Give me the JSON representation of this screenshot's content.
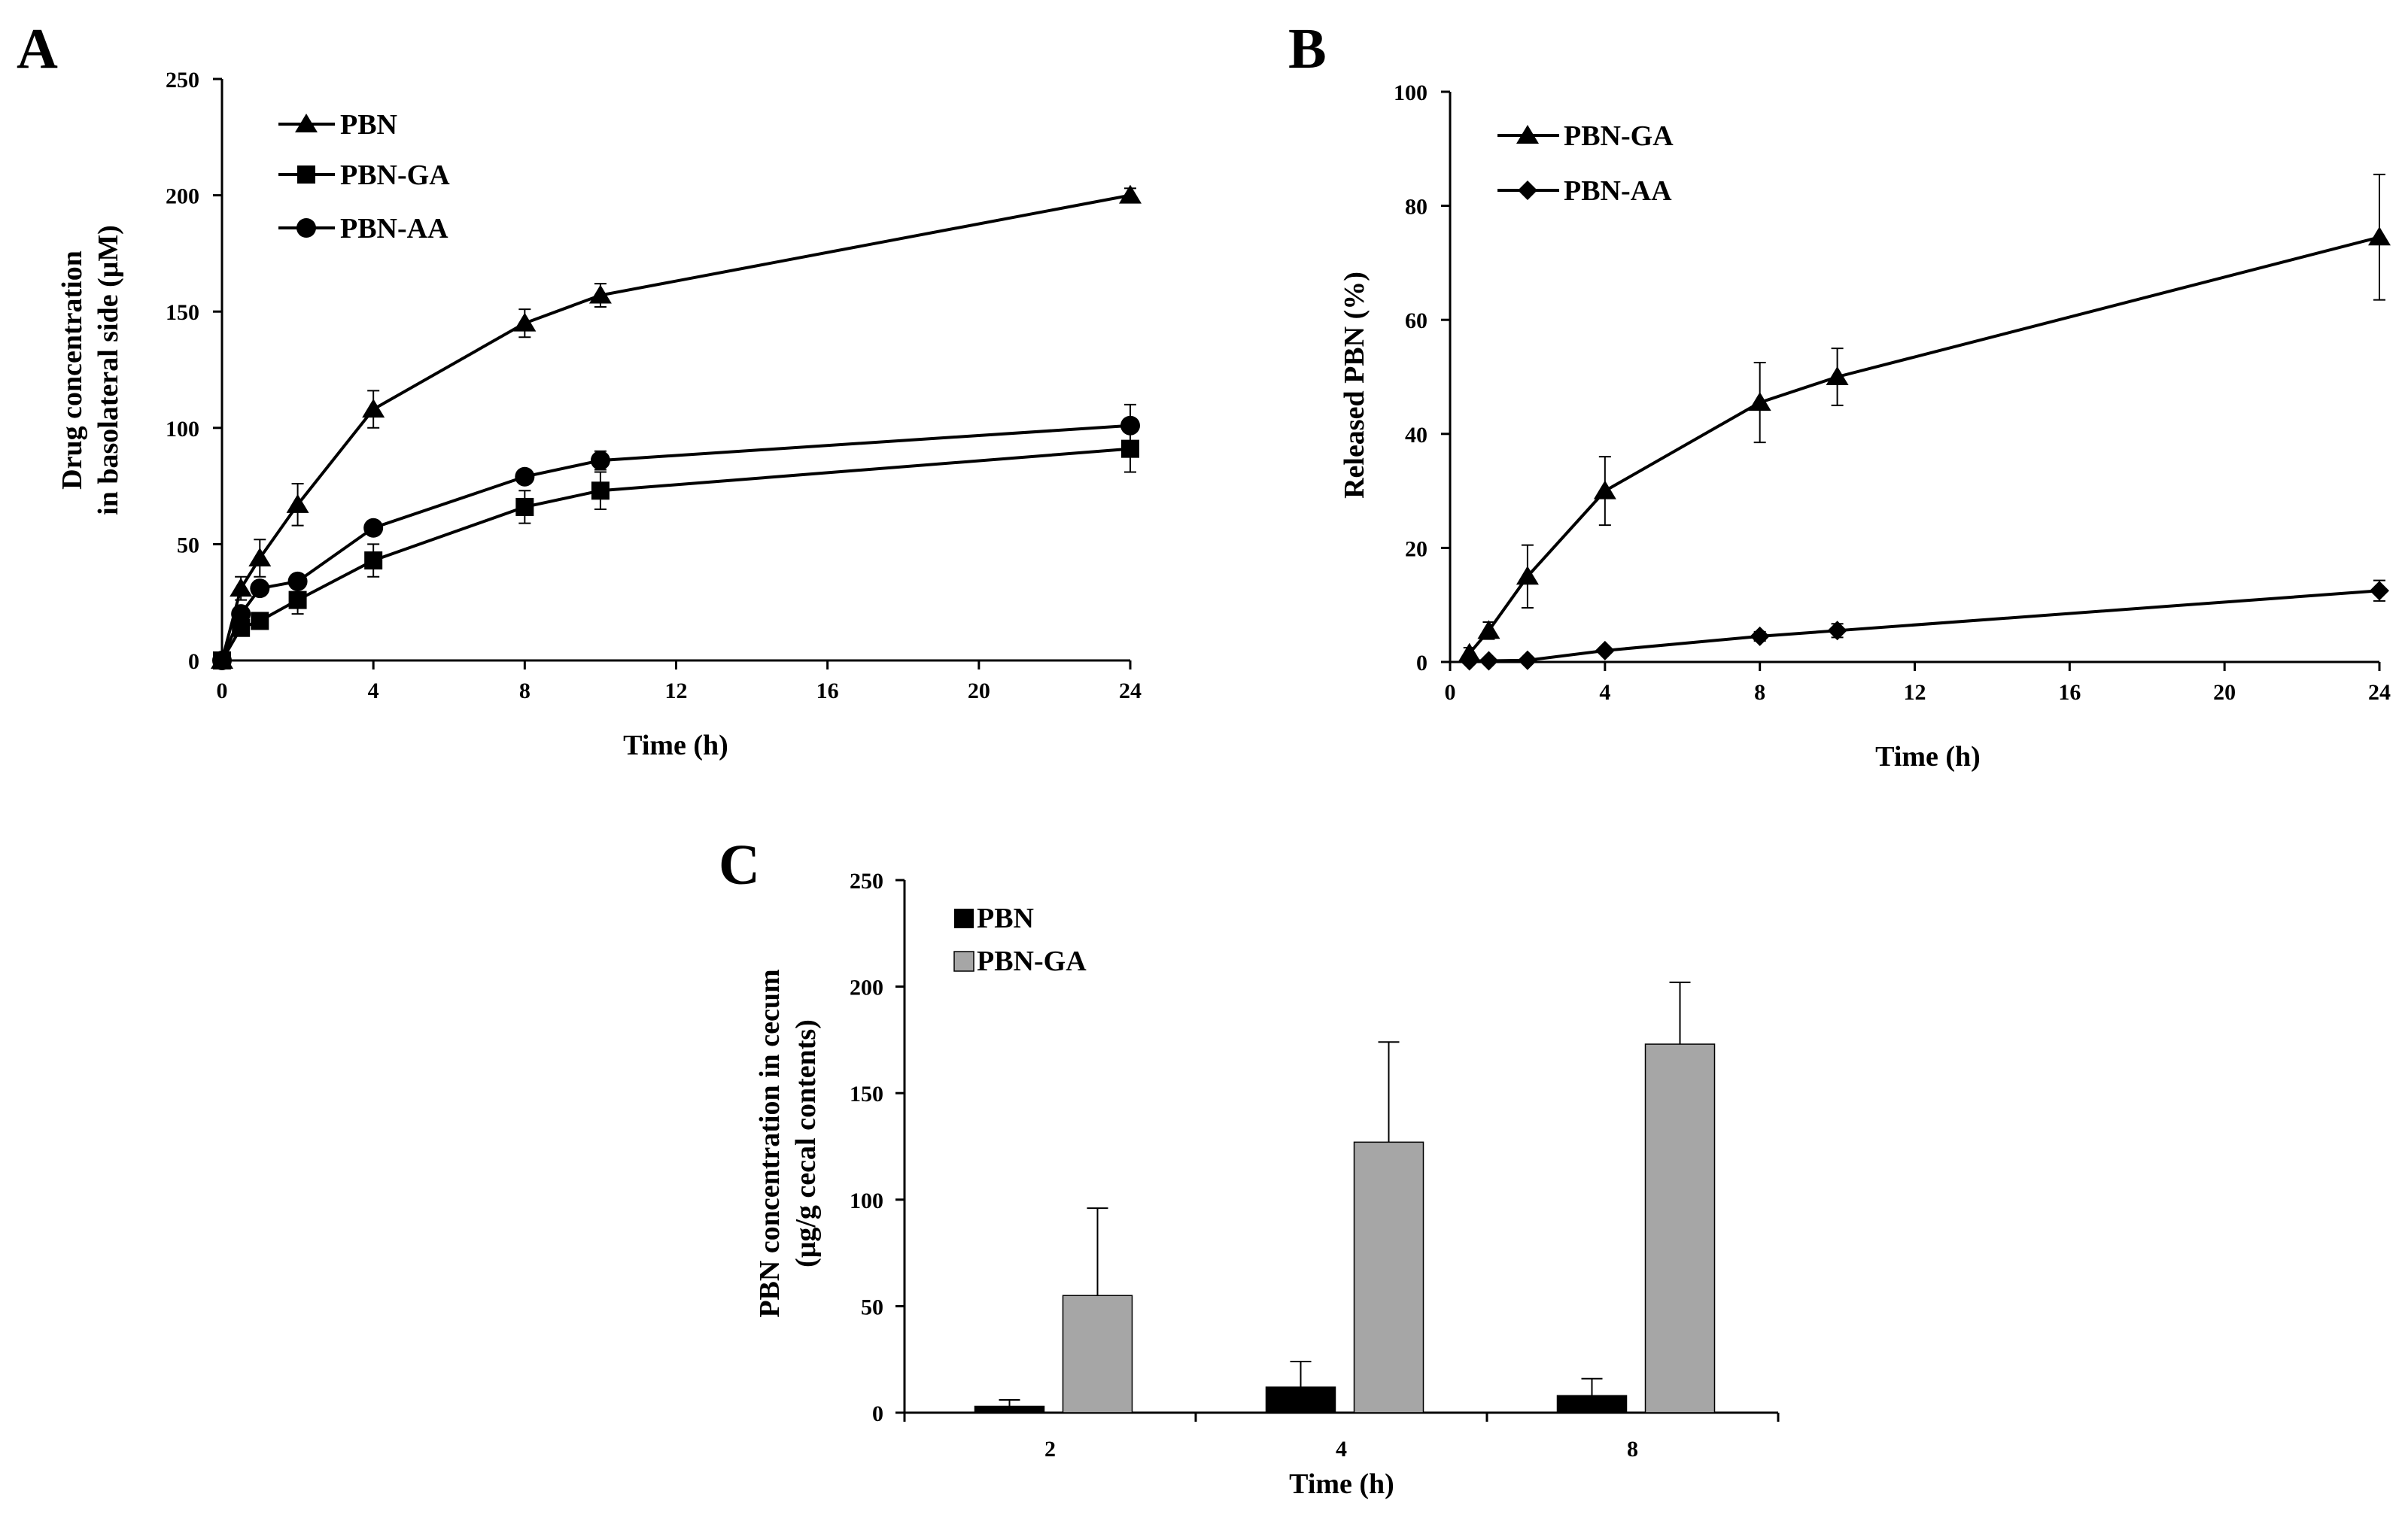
{
  "chart_data": [
    {
      "panel": "A",
      "type": "line",
      "xlabel": "Time (h)",
      "ylabel_lines": [
        "Drug concentration",
        "in basolateral side (μM)"
      ],
      "xlim": [
        0,
        24
      ],
      "ylim": [
        0,
        250
      ],
      "xticks": [
        0,
        4,
        8,
        12,
        16,
        20,
        24
      ],
      "yticks": [
        0,
        50,
        100,
        150,
        200,
        250
      ],
      "legend_position": "top-left",
      "series": [
        {
          "name": "PBN",
          "marker": "triangle",
          "x": [
            0,
            0.5,
            1,
            2,
            4,
            8,
            10,
            24
          ],
          "y": [
            0,
            31,
            44,
            67,
            108,
            145,
            157,
            200
          ],
          "err": [
            0,
            5,
            8,
            9,
            8,
            6,
            5,
            3
          ]
        },
        {
          "name": "PBN-GA",
          "marker": "square",
          "x": [
            0,
            0.5,
            1,
            2,
            4,
            8,
            10,
            24
          ],
          "y": [
            0,
            14,
            17,
            26,
            43,
            66,
            73,
            91
          ],
          "err": [
            0,
            2,
            3,
            6,
            7,
            7,
            8,
            10
          ]
        },
        {
          "name": "PBN-AA",
          "marker": "circle",
          "x": [
            0,
            0.5,
            1,
            2,
            4,
            8,
            10,
            24
          ],
          "y": [
            0,
            20,
            31,
            34,
            57,
            79,
            86,
            101
          ],
          "err": [
            0,
            2,
            3,
            2,
            3,
            3,
            4,
            9
          ]
        }
      ]
    },
    {
      "panel": "B",
      "type": "line",
      "xlabel": "Time (h)",
      "ylabel": "Released PBN (%)",
      "xlim": [
        0,
        24
      ],
      "ylim": [
        0,
        100
      ],
      "xticks": [
        0,
        4,
        8,
        12,
        16,
        20,
        24
      ],
      "yticks": [
        0,
        20,
        40,
        60,
        80,
        100
      ],
      "legend_position": "top-left",
      "series": [
        {
          "name": "PBN-GA",
          "marker": "triangle",
          "x": [
            0.5,
            1,
            2,
            4,
            8,
            10,
            24
          ],
          "y": [
            1.5,
            5.5,
            15,
            30,
            45.5,
            50,
            74.5
          ],
          "err": [
            1,
            1.5,
            5.5,
            6,
            7,
            5,
            11
          ]
        },
        {
          "name": "PBN-AA",
          "marker": "diamond",
          "x": [
            0.5,
            1,
            2,
            4,
            8,
            10,
            24
          ],
          "y": [
            0.2,
            0.2,
            0.3,
            2,
            4.5,
            5.5,
            12.5
          ],
          "err": [
            0.3,
            0.3,
            0.3,
            0.5,
            0.8,
            1.2,
            1.8
          ]
        }
      ]
    },
    {
      "panel": "C",
      "type": "bar",
      "xlabel": "Time (h)",
      "ylabel_lines": [
        "PBN concentration in cecum",
        "(μg/g cecal contents)"
      ],
      "categories": [
        "2",
        "4",
        "8"
      ],
      "ylim": [
        0,
        250
      ],
      "yticks": [
        0,
        50,
        100,
        150,
        200,
        250
      ],
      "legend_position": "top-left",
      "series": [
        {
          "name": "PBN",
          "color": "#000000",
          "values": [
            3,
            12,
            8
          ],
          "err": [
            3,
            12,
            8
          ]
        },
        {
          "name": "PBN-GA",
          "color": "#a6a6a6",
          "values": [
            55,
            127,
            173
          ],
          "err": [
            41,
            47,
            29
          ]
        }
      ]
    }
  ]
}
